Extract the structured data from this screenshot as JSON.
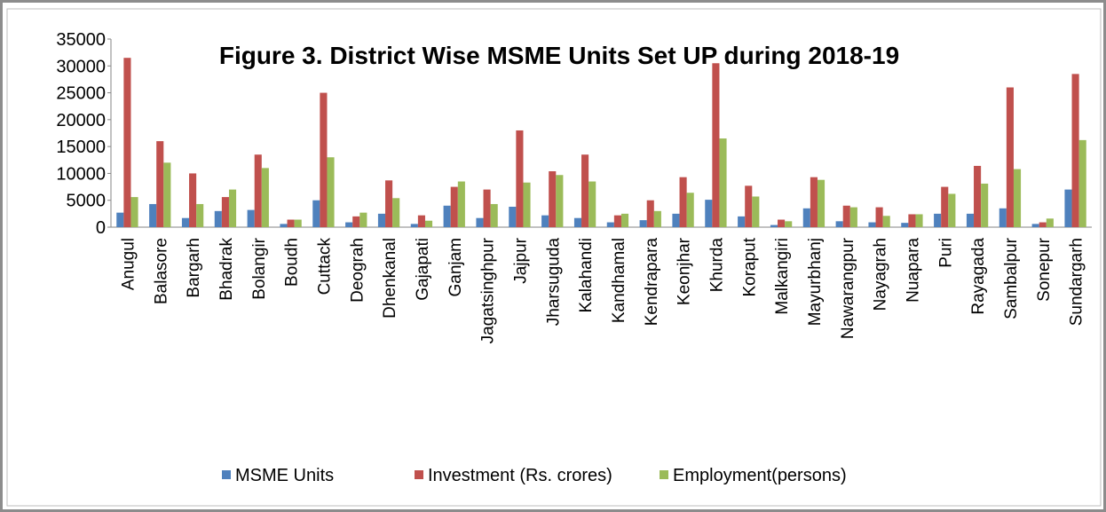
{
  "chart_data": {
    "type": "bar",
    "title": "Figure 3. District Wise MSME Units Set UP during 2018-19",
    "categories": [
      "Anugul",
      "Balasore",
      "Bargarh",
      "Bhadrak",
      "Bolangir",
      "Boudh",
      "Cuttack",
      "Deograh",
      "Dhenkanal",
      "Gajapati",
      "Ganjam",
      "Jagatsinghpur",
      "Jajpur",
      "Jharsuguda",
      "Kalahandi",
      "Kandhamal",
      "Kendrapara",
      "Keonjhar",
      "Khurda",
      "Koraput",
      "Malkangiri",
      "Mayurbhanj",
      "Nawarangpur",
      "Nayagrah",
      "Nuapara",
      "Puri",
      "Rayagada",
      "Sambalpur",
      "Sonepur",
      "Sundargarh"
    ],
    "series": [
      {
        "name": "MSME Units",
        "color": "#4f81bd",
        "values": [
          2700,
          4300,
          1700,
          3000,
          3200,
          600,
          5000,
          900,
          2500,
          600,
          4000,
          1700,
          3800,
          2200,
          1700,
          900,
          1300,
          2500,
          5100,
          2000,
          400,
          3500,
          1100,
          900,
          800,
          2500,
          2500,
          3500,
          600,
          7000
        ]
      },
      {
        "name": "Investment (Rs. crores)",
        "color": "#c0504d",
        "values": [
          31500,
          16000,
          10000,
          5600,
          13500,
          1400,
          25000,
          2000,
          8700,
          2200,
          7500,
          7000,
          18000,
          10400,
          13500,
          2200,
          5000,
          9300,
          30500,
          7700,
          1400,
          9300,
          4000,
          3700,
          2400,
          7500,
          11400,
          26000,
          900,
          28500
        ]
      },
      {
        "name": "Employment(persons)",
        "color": "#9bbb59",
        "values": [
          5600,
          12000,
          4300,
          7000,
          11000,
          1400,
          13000,
          2700,
          5400,
          1200,
          8500,
          4300,
          8300,
          9700,
          8500,
          2500,
          3000,
          6400,
          16500,
          5700,
          1100,
          8800,
          3700,
          2100,
          2400,
          6200,
          8100,
          10800,
          1600,
          16200
        ]
      }
    ],
    "ylim": [
      0,
      35000
    ],
    "yticks": [
      0,
      5000,
      10000,
      15000,
      20000,
      25000,
      30000,
      35000
    ],
    "grid": false,
    "legend": "bottom"
  }
}
